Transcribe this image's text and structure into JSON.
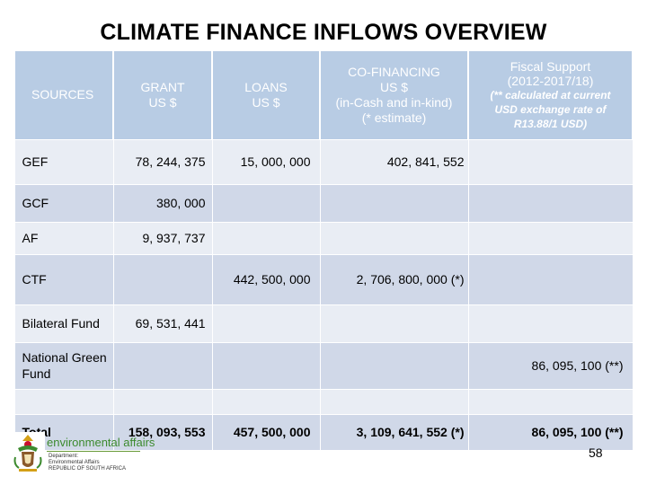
{
  "title": "CLIMATE FINANCE INFLOWS OVERVIEW",
  "headers": {
    "sources": "SOURCES",
    "grant_line1": "GRANT",
    "grant_line2": "US $",
    "loans_line1": "LOANS",
    "loans_line2": "US $",
    "cofin_line1": "CO-FINANCING",
    "cofin_line2": "US $",
    "cofin_line3": "(in-Cash and in-kind)",
    "cofin_line4": "(* estimate)",
    "fiscal_line1": "Fiscal Support",
    "fiscal_line2": "(2012-2017/18)",
    "fiscal_note1": "(** calculated at current",
    "fiscal_note2": "USD exchange rate of",
    "fiscal_note3": "R13.88/1 USD)"
  },
  "rows": [
    {
      "source": "GEF",
      "grant": "78, 244, 375",
      "loans": "15, 000, 000",
      "cofin": "402, 841, 552",
      "fiscal": ""
    },
    {
      "source": "GCF",
      "grant": "380, 000",
      "loans": "",
      "cofin": "",
      "fiscal": ""
    },
    {
      "source": "AF",
      "grant": "9, 937, 737",
      "loans": "",
      "cofin": "",
      "fiscal": ""
    },
    {
      "source": "CTF",
      "grant": "",
      "loans": "442, 500, 000",
      "cofin": "2, 706, 800, 000 (*)",
      "fiscal": ""
    },
    {
      "source": "Bilateral Fund",
      "grant": "69, 531, 441",
      "loans": "",
      "cofin": "",
      "fiscal": ""
    },
    {
      "source": "National Green Fund",
      "grant": "",
      "loans": "",
      "cofin": "",
      "fiscal": "86, 095, 100 (**)"
    },
    {
      "source": "",
      "grant": "",
      "loans": "",
      "cofin": "",
      "fiscal": ""
    },
    {
      "source": "Total",
      "grant": "158, 093, 553",
      "loans": "457, 500, 000",
      "cofin": "3, 109, 641, 552 (*)",
      "fiscal": "86, 095, 100 (**)"
    }
  ],
  "logo": {
    "brand": "environmental affairs",
    "line1": "Department:",
    "line2": "Environmental Affairs",
    "line3": "REPUBLIC OF SOUTH AFRICA"
  },
  "page_number": "58"
}
